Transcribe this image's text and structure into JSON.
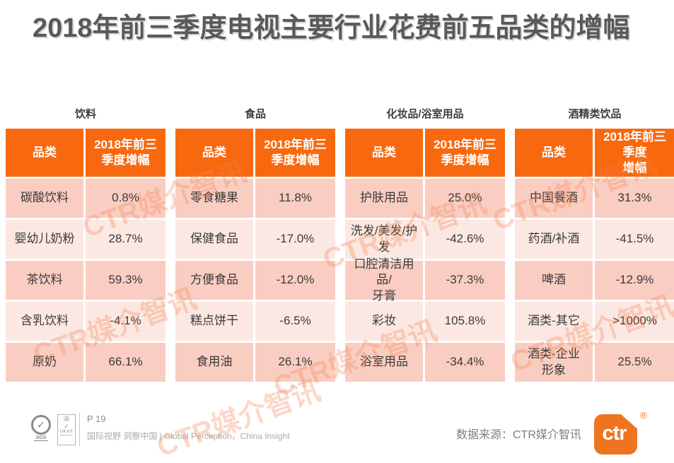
{
  "title": "2018年前三季度电视主要行业花费前五品类的增幅",
  "watermark": {
    "text": "CTR媒介智讯"
  },
  "tables": [
    {
      "category": "饮料",
      "headers": [
        "品类",
        "2018年前三\n季度增幅"
      ],
      "rows": [
        {
          "name": "碳酸饮料",
          "value": "0.8%"
        },
        {
          "name": "婴幼儿奶粉",
          "value": "28.7%"
        },
        {
          "name": "茶饮料",
          "value": "59.3%"
        },
        {
          "name": "含乳饮料",
          "value": "-4.1%"
        },
        {
          "name": "原奶",
          "value": "66.1%"
        }
      ]
    },
    {
      "category": "食品",
      "headers": [
        "品类",
        "2018年前三\n季度增幅"
      ],
      "rows": [
        {
          "name": "零食糖果",
          "value": "11.8%"
        },
        {
          "name": "保健食品",
          "value": "-17.0%"
        },
        {
          "name": "方便食品",
          "value": "-12.0%"
        },
        {
          "name": "糕点饼干",
          "value": "-6.5%"
        },
        {
          "name": "食用油",
          "value": "26.1%"
        }
      ]
    },
    {
      "category": "化妆品/浴室用品",
      "headers": [
        "品类",
        "2018年前三\n季度增幅"
      ],
      "rows": [
        {
          "name": "护肤用品",
          "value": "25.0%"
        },
        {
          "name": "洗发/美发/护发",
          "value": "-42.6%"
        },
        {
          "name": "口腔清洁用品/\n牙膏",
          "value": "-37.3%"
        },
        {
          "name": "彩妆",
          "value": "105.8%"
        },
        {
          "name": "浴室用品",
          "value": "-34.4%"
        }
      ]
    },
    {
      "category": "酒精类饮品",
      "headers": [
        "品类",
        "2018年前三\n季度\n增幅"
      ],
      "rows": [
        {
          "name": "中国餐酒",
          "value": "31.3%"
        },
        {
          "name": "药酒/补酒",
          "value": "-41.5%"
        },
        {
          "name": "啤酒",
          "value": "-12.9%"
        },
        {
          "name": "酒类-其它",
          "value": ">1000%"
        },
        {
          "name": "酒类-企业\n形象",
          "value": "25.5%"
        }
      ]
    }
  ],
  "footer": {
    "page_number": "P 19",
    "tagline": "国际视野 洞察中国 |  Global Perception，China Insight",
    "source": "数据来源：CTR媒介智讯",
    "sgs_check": "✓",
    "sgs_label": "SGS",
    "ukas_crown": "♔",
    "ukas_check": "✓",
    "ukas_label": "UKAS",
    "logo_text": "ctr",
    "registered_mark": "®"
  },
  "colors": {
    "header_orange": "#f8690f",
    "row_dark_pink": "#facdc2",
    "row_light_pink": "#fce8e2",
    "title_gray": "#595959",
    "logo_orange": "#ee7420",
    "watermark_orange": "#f4824f"
  }
}
